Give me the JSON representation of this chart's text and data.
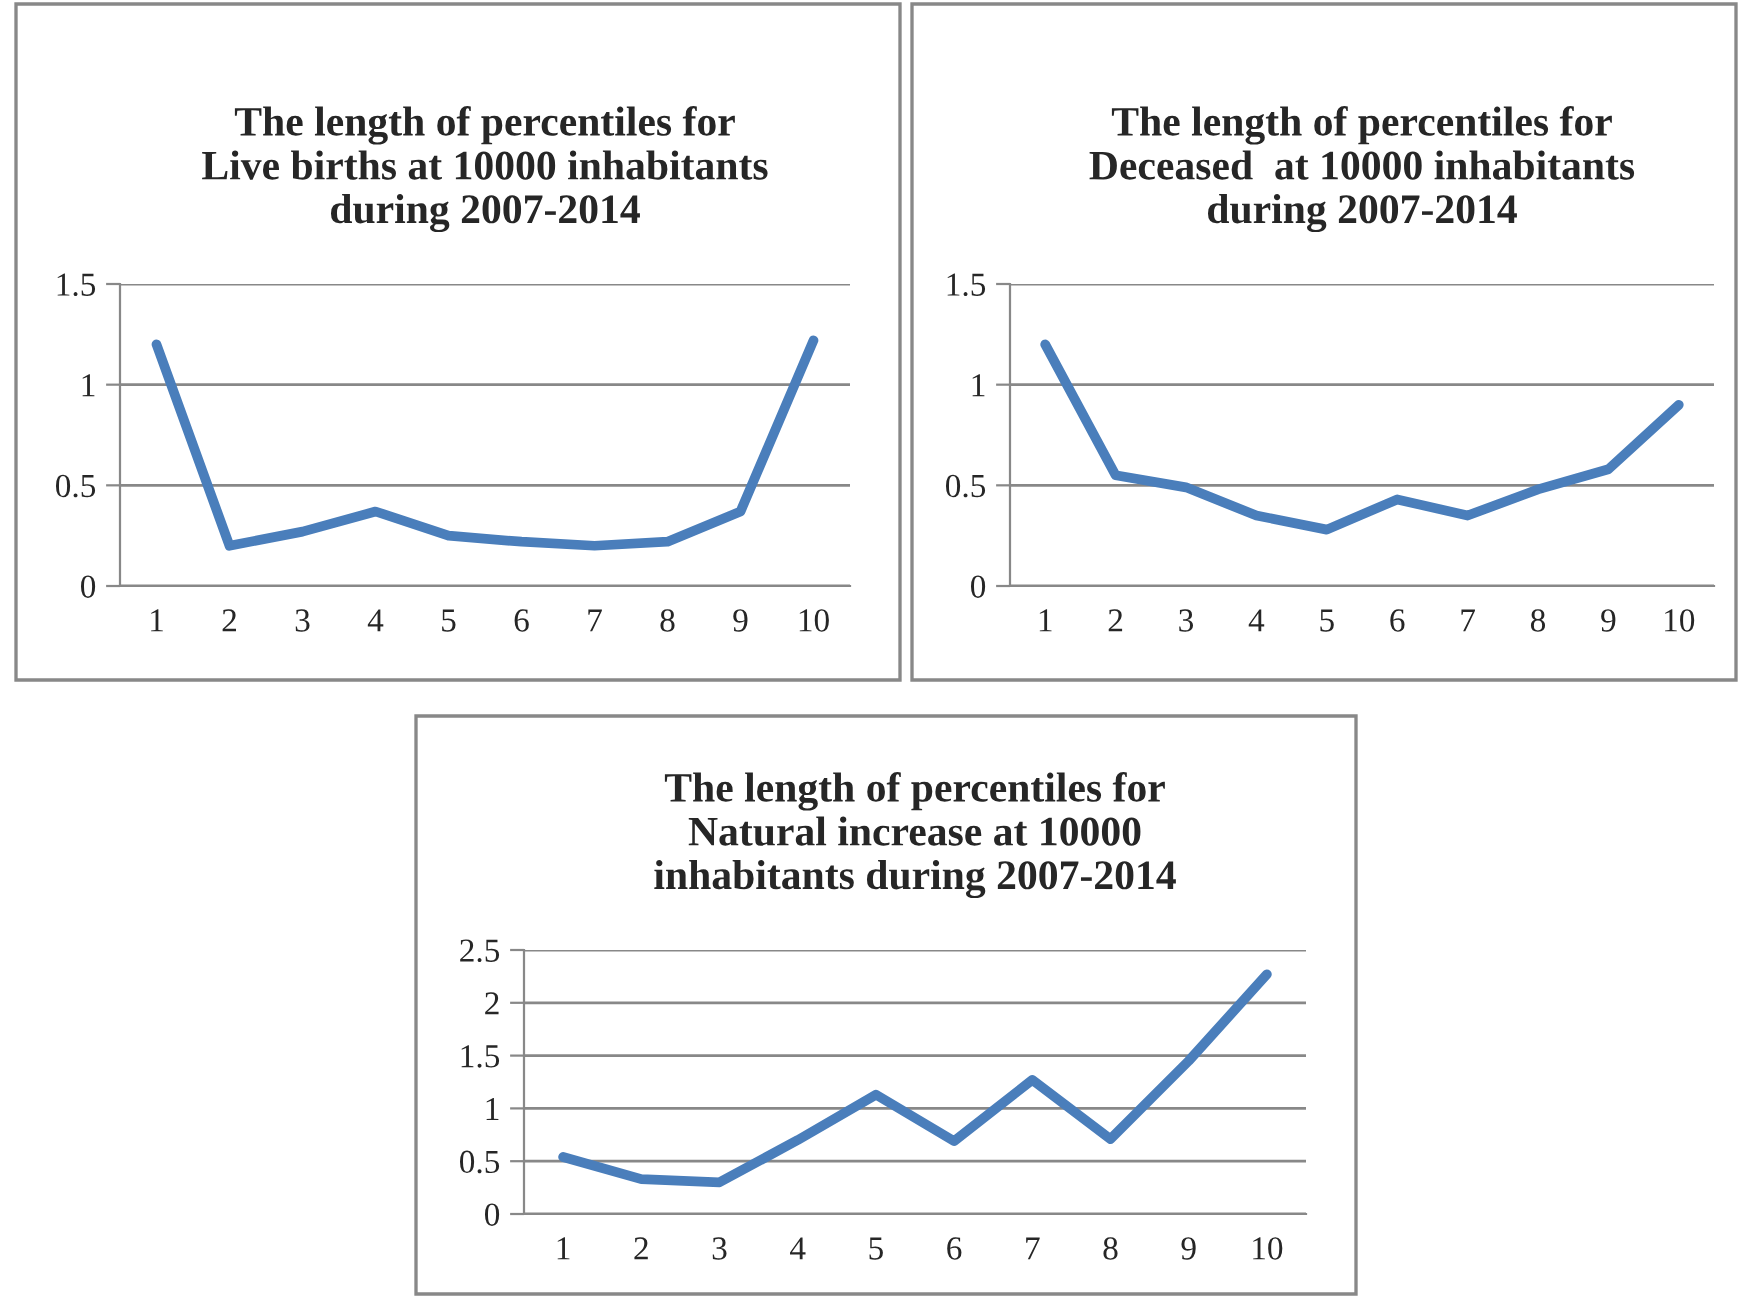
{
  "chart_data": [
    {
      "type": "line",
      "title": "The length of percentiles for\nLive births at 10000 inhabitants\nduring 2007-2014",
      "categories": [
        "1",
        "2",
        "3",
        "4",
        "5",
        "6",
        "7",
        "8",
        "9",
        "10"
      ],
      "series": [
        {
          "color": "#4a7ebb",
          "values": [
            1.2,
            0.2,
            0.27,
            0.37,
            0.25,
            0.22,
            0.2,
            0.22,
            0.37,
            1.22
          ]
        }
      ],
      "ylim": [
        0,
        1.5
      ],
      "yticks": [
        0,
        {
          "value": 0.5,
          "label": "0.5"
        },
        1,
        {
          "value": 1.5,
          "label": "1.5"
        }
      ],
      "grid": "y",
      "legend": false,
      "marker": "none",
      "line_style": "solid"
    },
    {
      "type": "line",
      "title": "The length of percentiles for\nDeceased  at 10000 inhabitants\nduring 2007-2014",
      "categories": [
        "1",
        "2",
        "3",
        "4",
        "5",
        "6",
        "7",
        "8",
        "9",
        "10"
      ],
      "series": [
        {
          "color": "#4a7ebb",
          "values": [
            1.2,
            0.55,
            0.49,
            0.35,
            0.28,
            0.43,
            0.35,
            0.48,
            0.58,
            0.9
          ]
        }
      ],
      "ylim": [
        0,
        1.5
      ],
      "yticks": [
        0,
        {
          "value": 0.5,
          "label": "0.5"
        },
        1,
        {
          "value": 1.5,
          "label": "1.5"
        }
      ],
      "grid": "y",
      "legend": false,
      "marker": "none",
      "line_style": "solid"
    },
    {
      "type": "line",
      "title": "The length of percentiles for\nNatural increase at 10000\ninhabitants during 2007-2014",
      "categories": [
        "1",
        "2",
        "3",
        "4",
        "5",
        "6",
        "7",
        "8",
        "9",
        "10"
      ],
      "series": [
        {
          "color": "#4a7ebb",
          "values": [
            0.54,
            0.33,
            0.3,
            0.7,
            1.13,
            0.69,
            1.27,
            0.71,
            1.45,
            2.27
          ]
        }
      ],
      "ylim": [
        0,
        2.5
      ],
      "yticks": [
        0,
        {
          "value": 0.5,
          "label": "0.5"
        },
        1,
        {
          "value": 1.5,
          "label": "1.5"
        },
        2,
        {
          "value": 2.5,
          "label": "2.5"
        }
      ],
      "grid": "y",
      "legend": false,
      "marker": "none",
      "line_style": "solid"
    }
  ]
}
